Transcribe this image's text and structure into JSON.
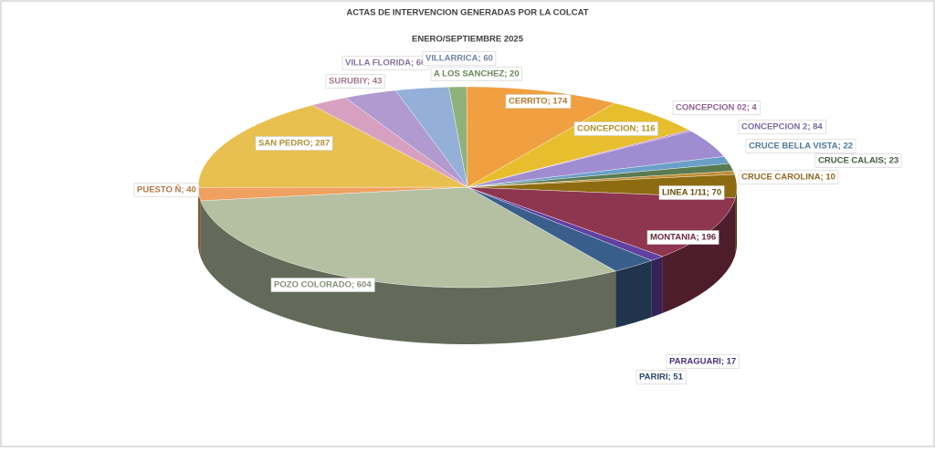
{
  "chart_data": {
    "type": "pie3d",
    "title": "ACTAS DE INTERVENCION GENERADAS POR LA COLCAT",
    "subtitle": "ENERO/SEPTIEMBRE 2025",
    "values": [
      20,
      174,
      116,
      4,
      84,
      22,
      23,
      10,
      70,
      196,
      17,
      51,
      604,
      40,
      287,
      43,
      60,
      60
    ],
    "value_labels": [
      "A LOS SANCHEZ; 20",
      "CERRITO; 174",
      "CONCEPCION; 116",
      "CONCEPCION 02; 4",
      "CONCEPCION 2; 84",
      "CRUCE BELLA VISTA; 22",
      "CRUCE CALAIS; 23",
      "CRUCE CAROLINA; 10",
      "LINEA 1/11; 70",
      "MONTANIA; 196",
      "PARAGUARI; 17",
      "PARIRI; 51",
      "POZO COLORADO; 604",
      "PUESTO Ñ; 40",
      "SAN PEDRO; 287",
      "SURUBIY; 43",
      "VILLA FLORIDA; 60",
      "VILLARRICA; 60"
    ],
    "colors": [
      "#8fb27a",
      "#f0a040",
      "#e6be2e",
      "#c284c4",
      "#a08cd0",
      "#6a9fc8",
      "#5a7a50",
      "#c08a30",
      "#8d6b10",
      "#8e3550",
      "#6040a0",
      "#3a5e8c",
      "#b5c0a2",
      "#f0a060",
      "#e8c050",
      "#d8a0c0",
      "#b09ad0",
      "#94b0d8"
    ]
  }
}
